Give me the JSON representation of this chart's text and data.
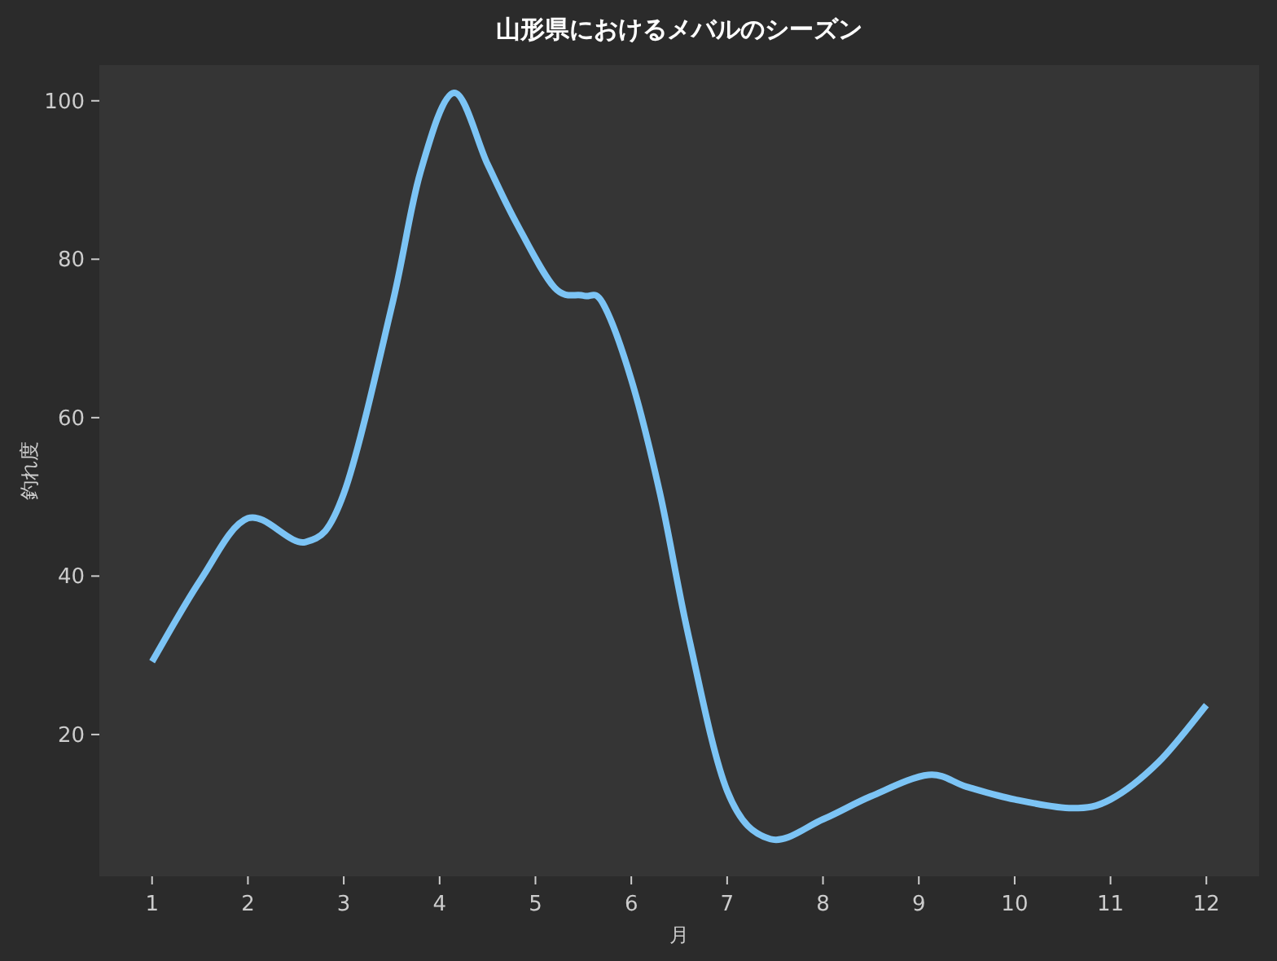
{
  "chart_data": {
    "type": "line",
    "title": "山形県におけるメバルのシーズン",
    "xlabel": "月",
    "ylabel": "釣れ度",
    "x": [
      1,
      1.5,
      2,
      2.6,
      3,
      3.5,
      3.8,
      4.15,
      4.5,
      4.8,
      5.2,
      5.5,
      5.7,
      6,
      6.3,
      6.6,
      7,
      7.45,
      8,
      8.5,
      9.1,
      9.5,
      10,
      10.6,
      11,
      11.5,
      12
    ],
    "series": [
      {
        "color": "#7cc4f5",
        "values": [
          29.2,
          39.4,
          47.3,
          44.3,
          50.4,
          74,
          91,
          101,
          92,
          84.6,
          76.4,
          75.4,
          74.5,
          64.8,
          50.4,
          32.3,
          12.9,
          6.8,
          9.3,
          12.2,
          14.9,
          13.4,
          11.8,
          10.7,
          11.8,
          16.5,
          23.7
        ]
      }
    ],
    "xlim": [
      0.45,
      12.55
    ],
    "ylim": [
      2.1,
      104.5
    ],
    "xticks": [
      1,
      2,
      3,
      4,
      5,
      6,
      7,
      8,
      9,
      10,
      11,
      12
    ],
    "yticks": [
      20,
      40,
      60,
      80,
      100
    ],
    "grid": false,
    "marker": "none",
    "line_style": "solid"
  }
}
